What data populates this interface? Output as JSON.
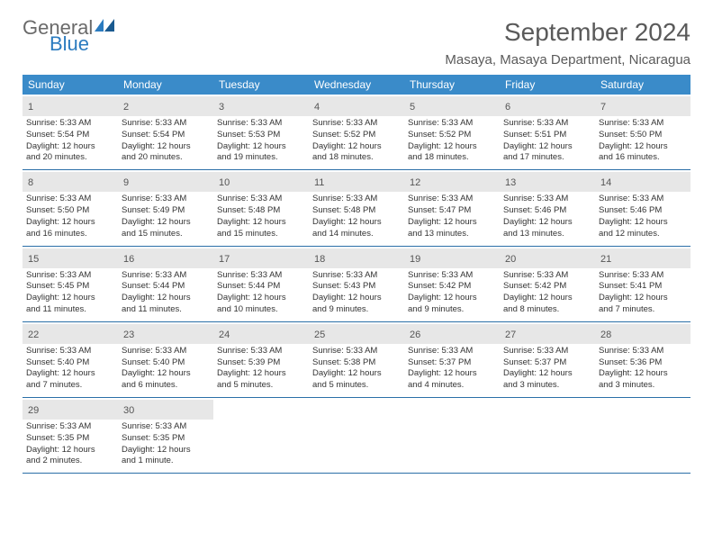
{
  "brand": {
    "part1": "General",
    "part2": "Blue"
  },
  "title": "September 2024",
  "location": "Masaya, Masaya Department, Nicaragua",
  "colors": {
    "header_bg": "#3a8bc9",
    "header_text": "#ffffff",
    "daynum_bg": "#e7e7e7",
    "border": "#2b6fa8",
    "logo_gray": "#6a6a6a",
    "logo_blue": "#2b7bbf",
    "text": "#333333"
  },
  "weekdays": [
    "Sunday",
    "Monday",
    "Tuesday",
    "Wednesday",
    "Thursday",
    "Friday",
    "Saturday"
  ],
  "weeks": [
    [
      {
        "n": "1",
        "sr": "Sunrise: 5:33 AM",
        "ss": "Sunset: 5:54 PM",
        "d1": "Daylight: 12 hours",
        "d2": "and 20 minutes."
      },
      {
        "n": "2",
        "sr": "Sunrise: 5:33 AM",
        "ss": "Sunset: 5:54 PM",
        "d1": "Daylight: 12 hours",
        "d2": "and 20 minutes."
      },
      {
        "n": "3",
        "sr": "Sunrise: 5:33 AM",
        "ss": "Sunset: 5:53 PM",
        "d1": "Daylight: 12 hours",
        "d2": "and 19 minutes."
      },
      {
        "n": "4",
        "sr": "Sunrise: 5:33 AM",
        "ss": "Sunset: 5:52 PM",
        "d1": "Daylight: 12 hours",
        "d2": "and 18 minutes."
      },
      {
        "n": "5",
        "sr": "Sunrise: 5:33 AM",
        "ss": "Sunset: 5:52 PM",
        "d1": "Daylight: 12 hours",
        "d2": "and 18 minutes."
      },
      {
        "n": "6",
        "sr": "Sunrise: 5:33 AM",
        "ss": "Sunset: 5:51 PM",
        "d1": "Daylight: 12 hours",
        "d2": "and 17 minutes."
      },
      {
        "n": "7",
        "sr": "Sunrise: 5:33 AM",
        "ss": "Sunset: 5:50 PM",
        "d1": "Daylight: 12 hours",
        "d2": "and 16 minutes."
      }
    ],
    [
      {
        "n": "8",
        "sr": "Sunrise: 5:33 AM",
        "ss": "Sunset: 5:50 PM",
        "d1": "Daylight: 12 hours",
        "d2": "and 16 minutes."
      },
      {
        "n": "9",
        "sr": "Sunrise: 5:33 AM",
        "ss": "Sunset: 5:49 PM",
        "d1": "Daylight: 12 hours",
        "d2": "and 15 minutes."
      },
      {
        "n": "10",
        "sr": "Sunrise: 5:33 AM",
        "ss": "Sunset: 5:48 PM",
        "d1": "Daylight: 12 hours",
        "d2": "and 15 minutes."
      },
      {
        "n": "11",
        "sr": "Sunrise: 5:33 AM",
        "ss": "Sunset: 5:48 PM",
        "d1": "Daylight: 12 hours",
        "d2": "and 14 minutes."
      },
      {
        "n": "12",
        "sr": "Sunrise: 5:33 AM",
        "ss": "Sunset: 5:47 PM",
        "d1": "Daylight: 12 hours",
        "d2": "and 13 minutes."
      },
      {
        "n": "13",
        "sr": "Sunrise: 5:33 AM",
        "ss": "Sunset: 5:46 PM",
        "d1": "Daylight: 12 hours",
        "d2": "and 13 minutes."
      },
      {
        "n": "14",
        "sr": "Sunrise: 5:33 AM",
        "ss": "Sunset: 5:46 PM",
        "d1": "Daylight: 12 hours",
        "d2": "and 12 minutes."
      }
    ],
    [
      {
        "n": "15",
        "sr": "Sunrise: 5:33 AM",
        "ss": "Sunset: 5:45 PM",
        "d1": "Daylight: 12 hours",
        "d2": "and 11 minutes."
      },
      {
        "n": "16",
        "sr": "Sunrise: 5:33 AM",
        "ss": "Sunset: 5:44 PM",
        "d1": "Daylight: 12 hours",
        "d2": "and 11 minutes."
      },
      {
        "n": "17",
        "sr": "Sunrise: 5:33 AM",
        "ss": "Sunset: 5:44 PM",
        "d1": "Daylight: 12 hours",
        "d2": "and 10 minutes."
      },
      {
        "n": "18",
        "sr": "Sunrise: 5:33 AM",
        "ss": "Sunset: 5:43 PM",
        "d1": "Daylight: 12 hours",
        "d2": "and 9 minutes."
      },
      {
        "n": "19",
        "sr": "Sunrise: 5:33 AM",
        "ss": "Sunset: 5:42 PM",
        "d1": "Daylight: 12 hours",
        "d2": "and 9 minutes."
      },
      {
        "n": "20",
        "sr": "Sunrise: 5:33 AM",
        "ss": "Sunset: 5:42 PM",
        "d1": "Daylight: 12 hours",
        "d2": "and 8 minutes."
      },
      {
        "n": "21",
        "sr": "Sunrise: 5:33 AM",
        "ss": "Sunset: 5:41 PM",
        "d1": "Daylight: 12 hours",
        "d2": "and 7 minutes."
      }
    ],
    [
      {
        "n": "22",
        "sr": "Sunrise: 5:33 AM",
        "ss": "Sunset: 5:40 PM",
        "d1": "Daylight: 12 hours",
        "d2": "and 7 minutes."
      },
      {
        "n": "23",
        "sr": "Sunrise: 5:33 AM",
        "ss": "Sunset: 5:40 PM",
        "d1": "Daylight: 12 hours",
        "d2": "and 6 minutes."
      },
      {
        "n": "24",
        "sr": "Sunrise: 5:33 AM",
        "ss": "Sunset: 5:39 PM",
        "d1": "Daylight: 12 hours",
        "d2": "and 5 minutes."
      },
      {
        "n": "25",
        "sr": "Sunrise: 5:33 AM",
        "ss": "Sunset: 5:38 PM",
        "d1": "Daylight: 12 hours",
        "d2": "and 5 minutes."
      },
      {
        "n": "26",
        "sr": "Sunrise: 5:33 AM",
        "ss": "Sunset: 5:37 PM",
        "d1": "Daylight: 12 hours",
        "d2": "and 4 minutes."
      },
      {
        "n": "27",
        "sr": "Sunrise: 5:33 AM",
        "ss": "Sunset: 5:37 PM",
        "d1": "Daylight: 12 hours",
        "d2": "and 3 minutes."
      },
      {
        "n": "28",
        "sr": "Sunrise: 5:33 AM",
        "ss": "Sunset: 5:36 PM",
        "d1": "Daylight: 12 hours",
        "d2": "and 3 minutes."
      }
    ],
    [
      {
        "n": "29",
        "sr": "Sunrise: 5:33 AM",
        "ss": "Sunset: 5:35 PM",
        "d1": "Daylight: 12 hours",
        "d2": "and 2 minutes."
      },
      {
        "n": "30",
        "sr": "Sunrise: 5:33 AM",
        "ss": "Sunset: 5:35 PM",
        "d1": "Daylight: 12 hours",
        "d2": "and 1 minute."
      },
      {
        "empty": true
      },
      {
        "empty": true
      },
      {
        "empty": true
      },
      {
        "empty": true
      },
      {
        "empty": true
      }
    ]
  ]
}
